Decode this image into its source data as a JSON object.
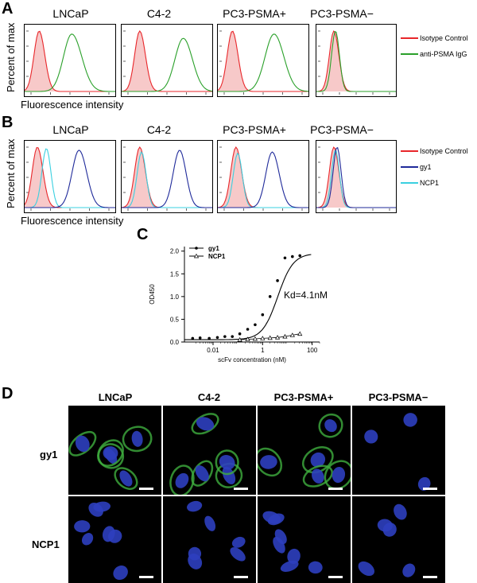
{
  "panels": {
    "a": "A",
    "b": "B",
    "c": "C",
    "d": "D"
  },
  "flow": {
    "columns": [
      "LNCaP",
      "C4-2",
      "PC3-PSMA+",
      "PC3-PSMA−"
    ],
    "ylabel": "Percent of max",
    "xlabel": "Fluorescence intensity",
    "legend_a": [
      "Isotype Control",
      "anti-PSMA IgG"
    ],
    "legend_b": [
      "Isotype Control",
      "gy1",
      "NCP1"
    ],
    "colors": {
      "isotype": "#e8262a",
      "anti": "#2aa02a",
      "gy1": "#1f2a9a",
      "ncp1": "#3ad0e0",
      "fill": "#f7c9c9"
    }
  },
  "chart_data": {
    "type": "scatter",
    "xlabel": "scFv concentration (nM)",
    "ylabel": "OD450",
    "x_scale": "log",
    "xlim": [
      0.0007,
      200
    ],
    "ylim": [
      0,
      2.1
    ],
    "x_ticks": [
      "0.01",
      "1",
      "100"
    ],
    "y_ticks": [
      "0.0",
      "0.5",
      "1.0",
      "1.5",
      "2.0"
    ],
    "annotation": "Kd=4.1nM",
    "series": [
      {
        "name": "gy1",
        "marker": "filled-circle",
        "x": [
          0.0015,
          0.003,
          0.007,
          0.015,
          0.03,
          0.06,
          0.12,
          0.25,
          0.5,
          1.0,
          2.0,
          4.0,
          8.0,
          16.0,
          32.0
        ],
        "y": [
          0.08,
          0.09,
          0.08,
          0.1,
          0.12,
          0.12,
          0.18,
          0.28,
          0.38,
          0.6,
          1.0,
          1.35,
          1.85,
          1.88,
          1.9
        ]
      },
      {
        "name": "NCP1",
        "marker": "open-triangle",
        "x": [
          0.0015,
          0.003,
          0.007,
          0.015,
          0.03,
          0.06,
          0.12,
          0.25,
          0.5,
          1.0,
          2.0,
          4.0,
          8.0,
          16.0,
          32.0
        ],
        "y": [
          0.02,
          0.02,
          0.02,
          0.03,
          0.03,
          0.04,
          0.05,
          0.06,
          0.07,
          0.08,
          0.09,
          0.1,
          0.12,
          0.15,
          0.18
        ]
      }
    ]
  },
  "micro": {
    "columns": [
      "LNCaP",
      "C4-2",
      "PC3-PSMA+",
      "PC3-PSMA−"
    ],
    "rows": [
      "gy1",
      "NCP1"
    ]
  }
}
